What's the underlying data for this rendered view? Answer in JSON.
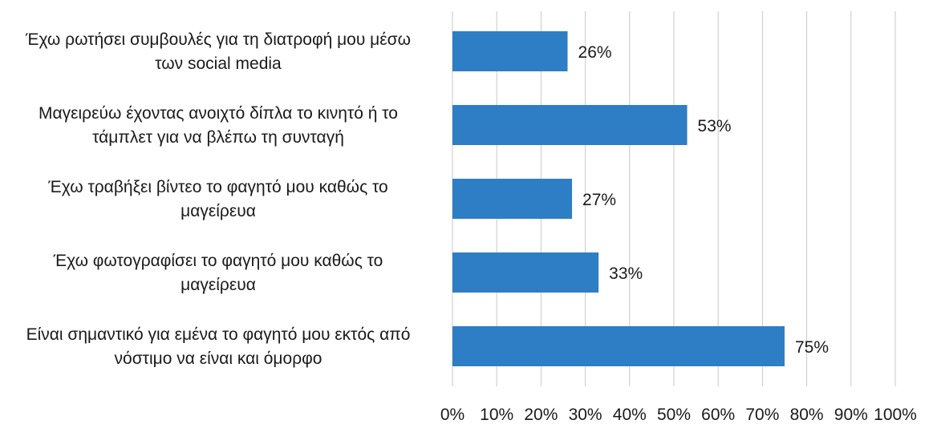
{
  "chart_data": {
    "type": "bar",
    "orientation": "horizontal",
    "categories": [
      [
        "Έχω ρωτήσει συμβουλές για τη  διατροφή μου μέσω",
        "των social media"
      ],
      [
        "Μαγειρεύω έχοντας ανοιχτό δίπλα το κινητό ή το",
        "τάμπλετ για να βλέπω τη συνταγή"
      ],
      [
        "Έχω τραβήξει βίντεο το φαγητό μου καθώς το",
        "μαγείρευα"
      ],
      [
        "Έχω φωτογραφίσει το φαγητό μου καθώς το",
        "μαγείρευα"
      ],
      [
        "Είναι σημαντικό για εμένα το φαγητό μου εκτός από",
        "νόστιμο να είναι και όμορφο"
      ]
    ],
    "values": [
      26,
      53,
      27,
      33,
      75
    ],
    "data_labels": [
      "26%",
      "53%",
      "27%",
      "33%",
      "75%"
    ],
    "xlim": [
      0,
      100
    ],
    "ticks": [
      "0%",
      "10%",
      "20%",
      "30%",
      "40%",
      "50%",
      "60%",
      "70%",
      "80%",
      "90%",
      "100%"
    ],
    "grid": true,
    "bar_color": "#2e7ec5",
    "grid_color": "#c8c8c8"
  }
}
